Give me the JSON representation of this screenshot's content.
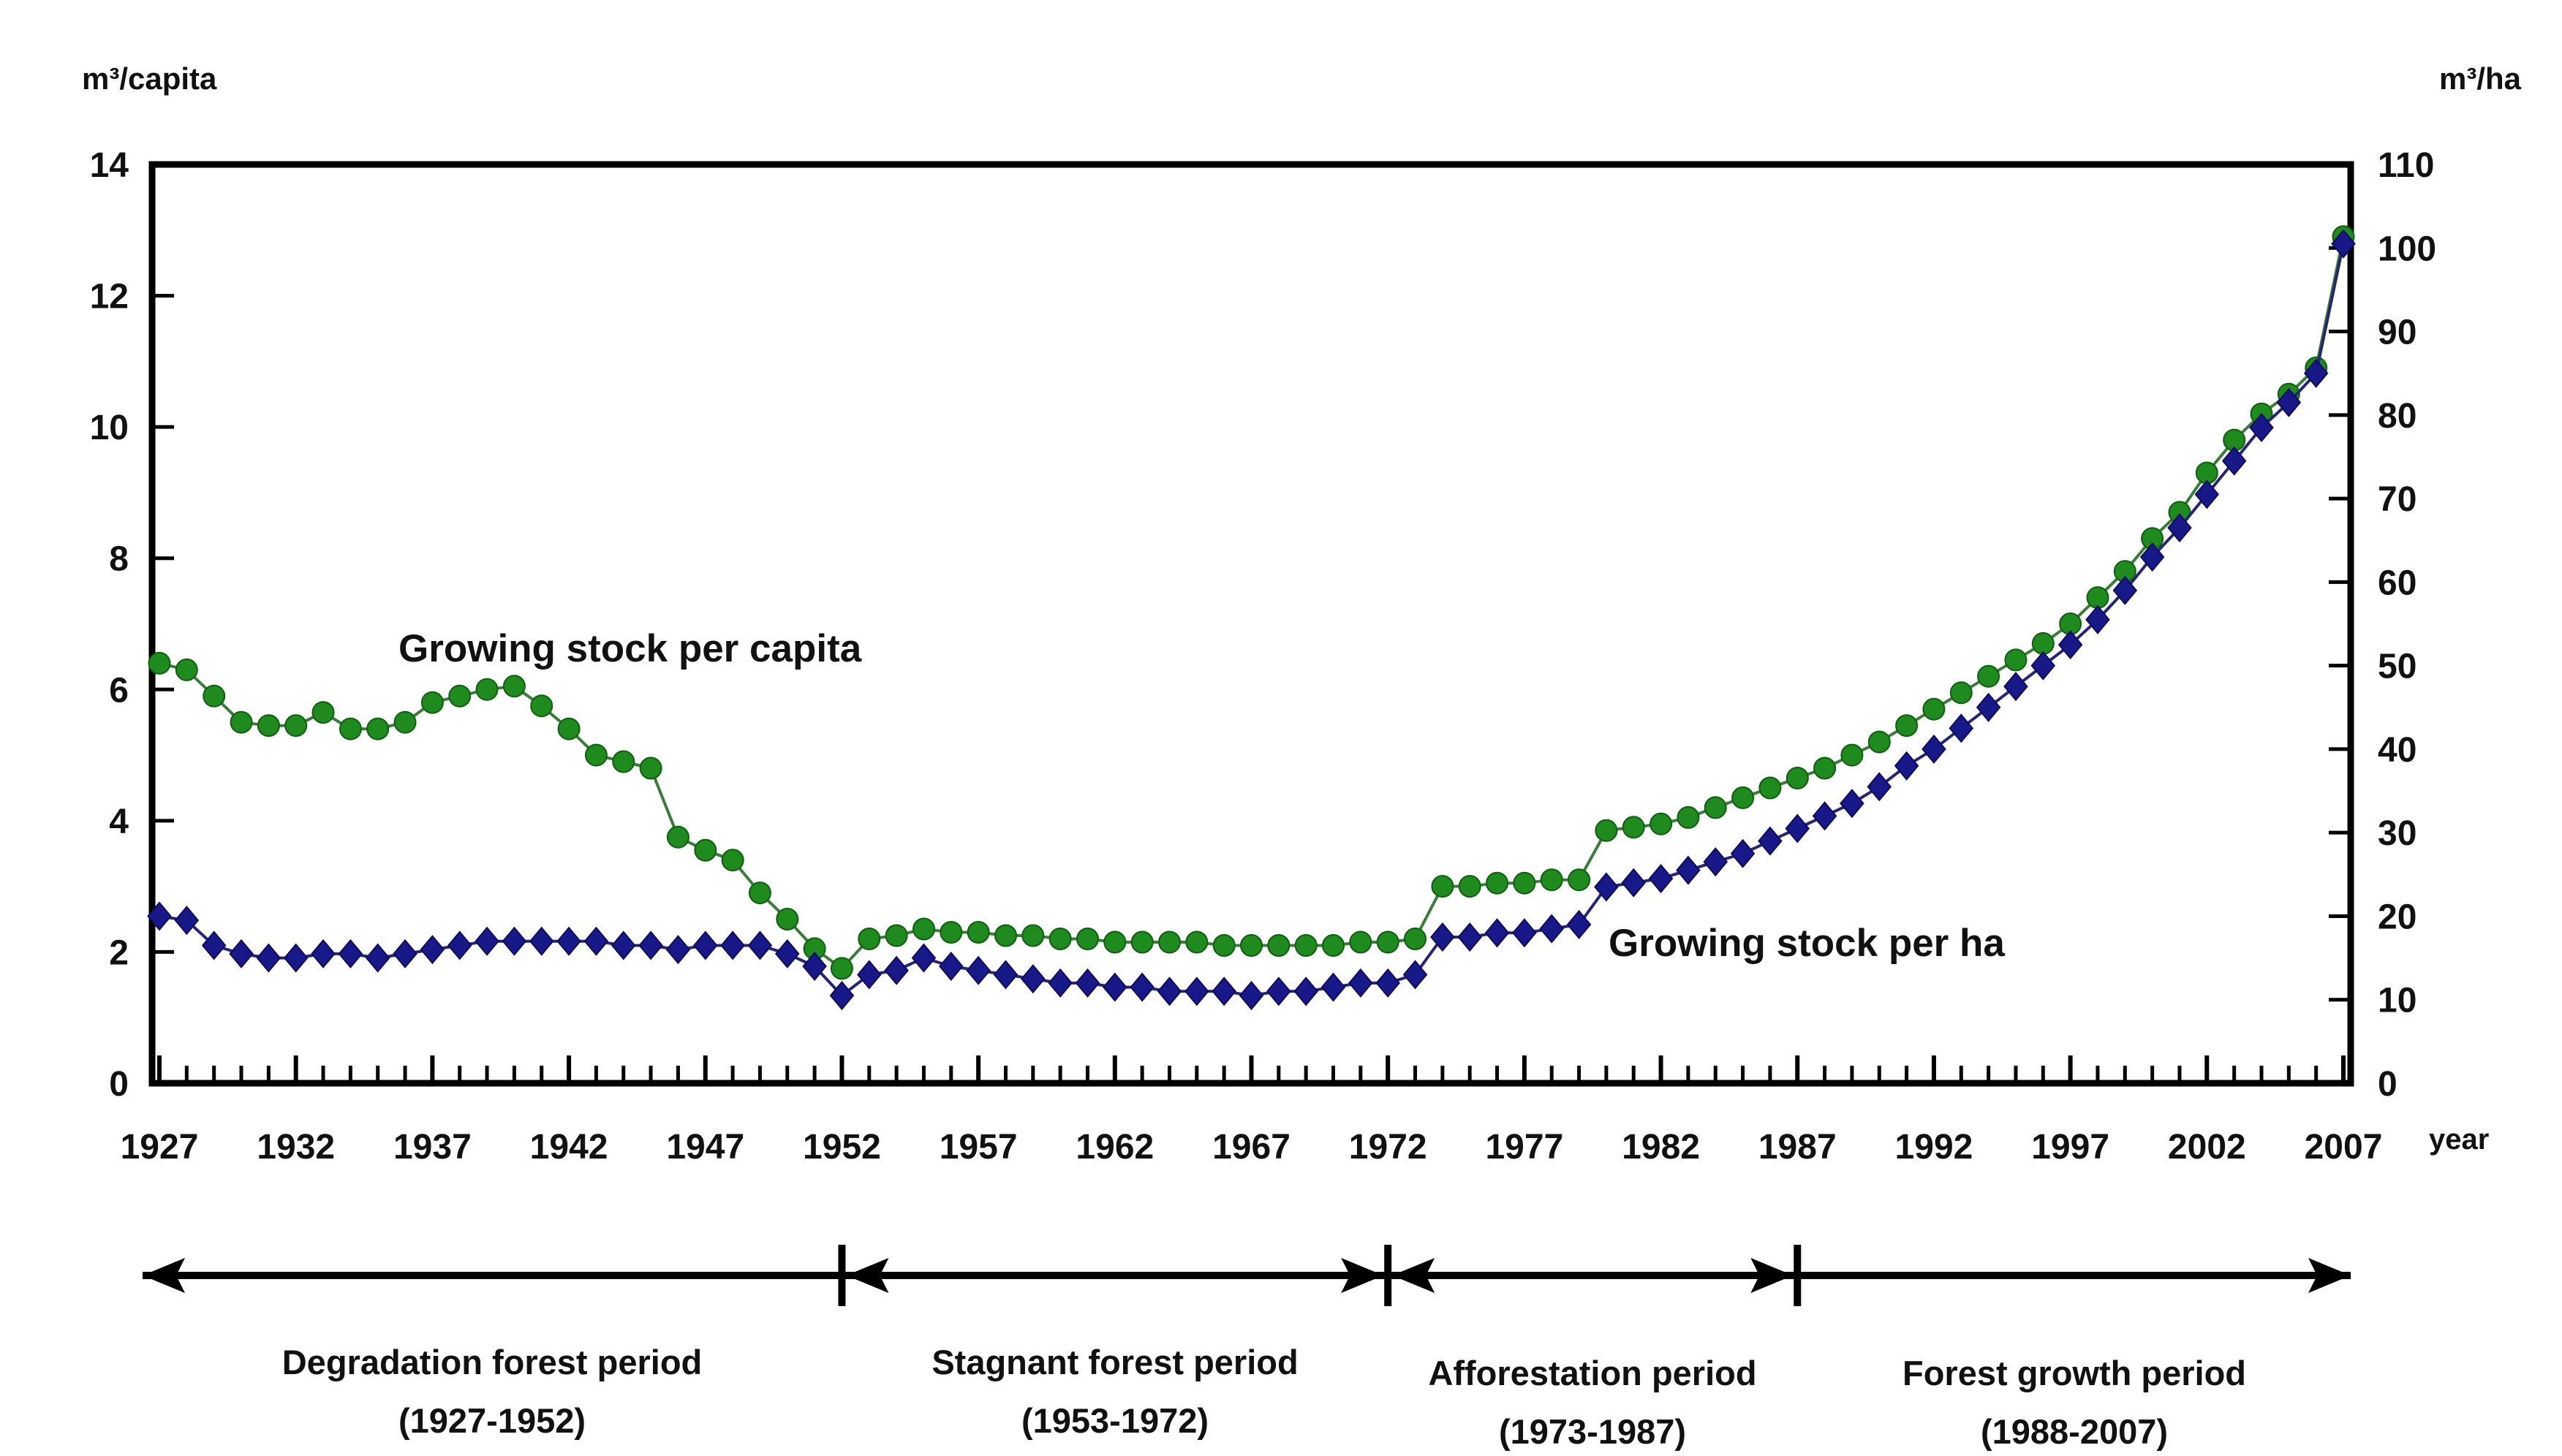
{
  "chart_data": {
    "type": "line",
    "title": "",
    "x_axis": {
      "label": "year",
      "tick_years": [
        1927,
        1932,
        1937,
        1942,
        1947,
        1952,
        1957,
        1962,
        1967,
        1972,
        1977,
        1982,
        1987,
        1992,
        1997,
        2002,
        2007
      ],
      "range": [
        1927,
        2007
      ],
      "minor_tick_step": 1
    },
    "left_axis": {
      "label": "m³/capita",
      "min": 0,
      "max": 14,
      "tick_step": 2,
      "ticks": [
        0,
        2,
        4,
        6,
        8,
        10,
        12,
        14
      ]
    },
    "right_axis": {
      "label": "m³/ha",
      "min": 0,
      "max": 110,
      "tick_step": 10,
      "ticks": [
        0,
        10,
        20,
        30,
        40,
        50,
        60,
        70,
        80,
        90,
        100,
        110
      ]
    },
    "grid": false,
    "legend_position": "inline-annotations",
    "x": [
      1927,
      1928,
      1929,
      1930,
      1931,
      1932,
      1933,
      1934,
      1935,
      1936,
      1937,
      1938,
      1939,
      1940,
      1941,
      1942,
      1943,
      1944,
      1945,
      1946,
      1947,
      1948,
      1949,
      1950,
      1951,
      1952,
      1953,
      1954,
      1955,
      1956,
      1957,
      1958,
      1959,
      1960,
      1961,
      1962,
      1963,
      1964,
      1965,
      1966,
      1967,
      1968,
      1969,
      1970,
      1971,
      1972,
      1973,
      1974,
      1975,
      1976,
      1977,
      1978,
      1979,
      1980,
      1981,
      1982,
      1983,
      1984,
      1985,
      1986,
      1987,
      1988,
      1989,
      1990,
      1991,
      1992,
      1993,
      1994,
      1995,
      1996,
      1997,
      1998,
      1999,
      2000,
      2001,
      2002,
      2003,
      2004,
      2005,
      2006,
      2007
    ],
    "series": [
      {
        "name": "Growing stock per capita",
        "axis": "left",
        "unit": "m³/capita",
        "marker": "circle",
        "color": "#1f8b1f",
        "line_color": "#3a7d3a",
        "values": [
          6.4,
          6.3,
          5.9,
          5.5,
          5.45,
          5.45,
          5.65,
          5.4,
          5.4,
          5.5,
          5.8,
          5.9,
          6.0,
          6.05,
          5.75,
          5.4,
          5.0,
          4.9,
          4.8,
          3.75,
          3.55,
          3.4,
          2.9,
          2.5,
          2.05,
          1.75,
          2.2,
          2.25,
          2.35,
          2.3,
          2.3,
          2.25,
          2.25,
          2.2,
          2.2,
          2.15,
          2.15,
          2.15,
          2.15,
          2.1,
          2.1,
          2.1,
          2.1,
          2.1,
          2.15,
          2.15,
          2.2,
          3.0,
          3.0,
          3.05,
          3.05,
          3.1,
          3.1,
          3.85,
          3.9,
          3.95,
          4.05,
          4.2,
          4.35,
          4.5,
          4.65,
          4.8,
          5.0,
          5.2,
          5.45,
          5.7,
          5.95,
          6.2,
          6.45,
          6.7,
          7.0,
          7.4,
          7.8,
          8.3,
          8.7,
          9.3,
          9.8,
          10.2,
          10.5,
          10.9,
          12.9
        ]
      },
      {
        "name": "Growing stock per ha",
        "axis": "right",
        "unit": "m³/ha",
        "marker": "diamond",
        "color": "#181889",
        "line_color": "#252578",
        "values": [
          20,
          19.5,
          16.5,
          15.5,
          15,
          15,
          15.5,
          15.5,
          15,
          15.5,
          16,
          16.5,
          17,
          17,
          17,
          17,
          17,
          16.5,
          16.5,
          16,
          16.5,
          16.5,
          16.5,
          15.5,
          14,
          10.5,
          13,
          13.5,
          15,
          14,
          13.5,
          13,
          12.5,
          12,
          12,
          11.5,
          11.5,
          11,
          11,
          11,
          10.5,
          11,
          11,
          11.5,
          12,
          12,
          13,
          17.5,
          17.5,
          18,
          18,
          18.5,
          19,
          23.5,
          24,
          24.5,
          25.5,
          26.5,
          27.5,
          29,
          30.5,
          32,
          33.5,
          35.5,
          38,
          40,
          42.5,
          45,
          47.5,
          50,
          52.5,
          55.5,
          59,
          63,
          66.5,
          70.5,
          74.5,
          78.5,
          81.5,
          85,
          100.5
        ]
      }
    ],
    "annotations": {
      "per_capita_label": "Growing stock per capita",
      "per_ha_label": "Growing stock per ha"
    },
    "periods": [
      {
        "label": "Degradation forest period",
        "range": "(1927-1952)",
        "start_year": 1927,
        "end_year": 1952,
        "arrow_left": true,
        "arrow_right": false
      },
      {
        "label": "Stagnant forest period",
        "range": "(1953-1972)",
        "start_year": 1953,
        "end_year": 1972,
        "arrow_left": true,
        "arrow_right": true
      },
      {
        "label": "Afforestation period",
        "range": "(1973-1987)",
        "start_year": 1973,
        "end_year": 1987,
        "arrow_left": true,
        "arrow_right": true
      },
      {
        "label": "Forest growth period",
        "range": "(1988-2007)",
        "start_year": 1988,
        "end_year": 2007,
        "arrow_left": false,
        "arrow_right": true
      }
    ],
    "colors": {
      "axis": "#000000",
      "text": "#111111",
      "background": "#ffffff"
    }
  }
}
